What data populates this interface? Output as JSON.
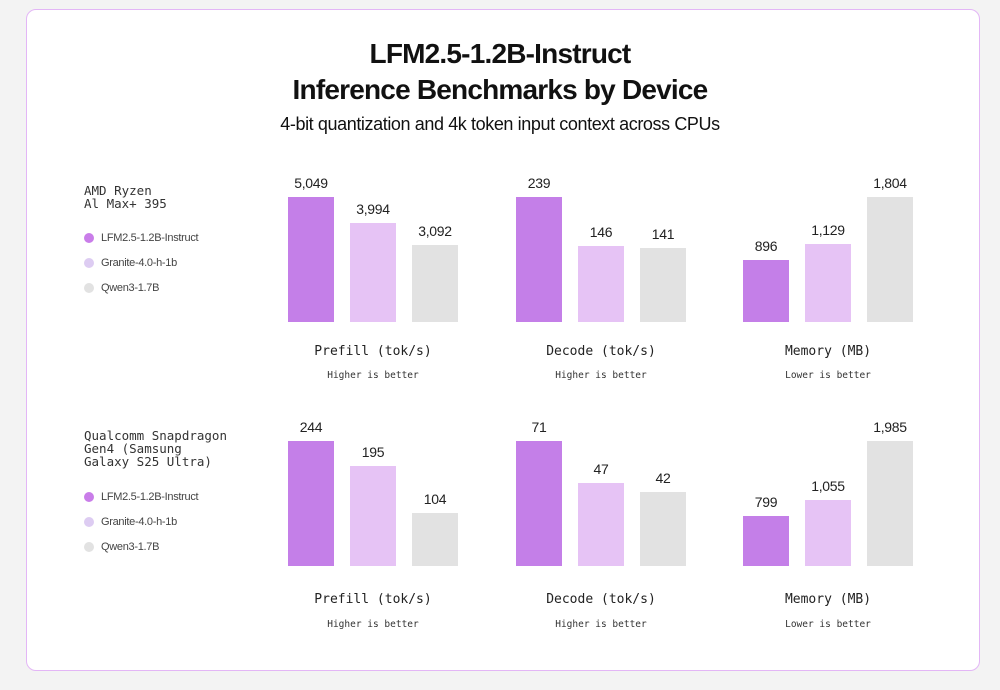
{
  "chart_data": {
    "type": "bar",
    "title": "LFM2.5-1.2B-Instruct",
    "title_line2": "Inference Benchmarks by Device",
    "subtitle": "4-bit quantization and 4k token input context across CPUs",
    "legend": [
      {
        "name": "LFM2.5-1.2B-Instruct",
        "color": "#c47fe8"
      },
      {
        "name": "Granite-4.0-h-1b",
        "color": "#e6c3f5"
      },
      {
        "name": "Qwen3-1.7B",
        "color": "#e2e2e2"
      }
    ],
    "legend_dot_colors": [
      "#c97de9",
      "#ddccf2",
      "#e2e2e2"
    ],
    "grid": false,
    "devices": [
      {
        "name": "AMD Ryzen\nAl Max+ 395",
        "panels": [
          {
            "xlabel": "Prefill (tok/s)",
            "note": "Higher is better",
            "values": [
              5049,
              3994,
              3092
            ],
            "labels": [
              "5,049",
              "3,994",
              "3,092"
            ]
          },
          {
            "xlabel": "Decode (tok/s)",
            "note": "Higher is better",
            "values": [
              239,
              146,
              141
            ],
            "labels": [
              "239",
              "146",
              "141"
            ]
          },
          {
            "xlabel": "Memory (MB)",
            "note": "Lower is better",
            "values": [
              896,
              1129,
              1804
            ],
            "labels": [
              "896",
              "1,129",
              "1,804"
            ]
          }
        ]
      },
      {
        "name": "Qualcomm Snapdragon\nGen4 (Samsung\nGalaxy S25 Ultra)",
        "panels": [
          {
            "xlabel": "Prefill (tok/s)",
            "note": "Higher is better",
            "values": [
              244,
              195,
              104
            ],
            "labels": [
              "244",
              "195",
              "104"
            ]
          },
          {
            "xlabel": "Decode (tok/s)",
            "note": "Higher is better",
            "values": [
              71,
              47,
              42
            ],
            "labels": [
              "71",
              "47",
              "42"
            ]
          },
          {
            "xlabel": "Memory (MB)",
            "note": "Lower is better",
            "values": [
              799,
              1055,
              1985
            ],
            "labels": [
              "799",
              "1,055",
              "1,985"
            ]
          }
        ]
      }
    ]
  }
}
